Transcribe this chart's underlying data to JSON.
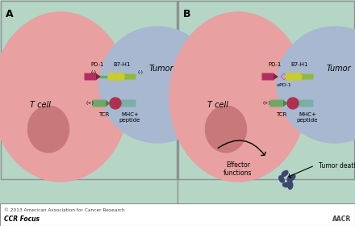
{
  "bg_color": "#b5d5c5",
  "t_cell_color": "#e8a0a0",
  "t_cell_nucleus_color": "#c87878",
  "tumor_color": "#a8b8d0",
  "pd1_color": "#b03060",
  "pd1_tip_color": "#802040",
  "b7h1_dot_color": "#c8cc30",
  "b7h1_stem_color": "#90b840",
  "tcr_color": "#70a868",
  "tcr_circle_color": "#b03050",
  "mhc_color": "#78b0a8",
  "apd1_color": "#d0a0d0",
  "connector_color": "#60b060",
  "tumor_death_color": "#3a4870",
  "border_color": "#909090",
  "footer_bg": "#ffffff",
  "aacr_text": "© 2013 American Association for Cancer Research",
  "ccr_focus": "CCR Focus",
  "label_A": "A",
  "label_B": "B",
  "tcell_label": "T cell",
  "tumor_label": "Tumor",
  "pd1_label": "PD-1",
  "b7h1_label": "B7-H1",
  "minus_label": "(-)",
  "plus_label": "(+)",
  "tcr_label": "TCR",
  "mhc_label": "MHC+\npeptide",
  "apd1_label": "αPD-1",
  "effector_label": "Effector\nfunctions",
  "tumor_death_label": "Tumor death"
}
